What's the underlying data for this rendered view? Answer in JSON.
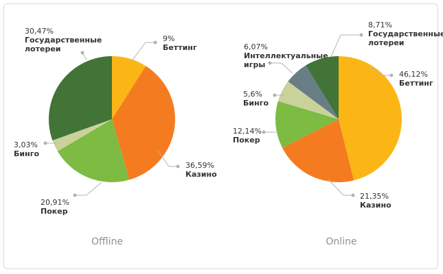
{
  "colors": {
    "betting": "#FBB616",
    "casino": "#F47B20",
    "poker": "#7DBB42",
    "bingo": "#C9D29A",
    "intellectual": "#697D87",
    "lottery": "#417436"
  },
  "chart_data": [
    {
      "type": "pie",
      "title": "Offline",
      "slices": [
        {
          "pct": "9%",
          "value": 9,
          "lines": [
            "Беттинг"
          ],
          "color": "#FBB616"
        },
        {
          "pct": "36,59%",
          "value": 36.59,
          "lines": [
            "Казино"
          ],
          "color": "#F47B20"
        },
        {
          "pct": "20,91%",
          "value": 20.91,
          "lines": [
            "Покер"
          ],
          "color": "#7DBB42"
        },
        {
          "pct": "3,03%",
          "value": 3.03,
          "lines": [
            "Бинго"
          ],
          "color": "#C9D29A"
        },
        {
          "pct": "30,47%",
          "value": 30.47,
          "lines": [
            "Государственные",
            "лотереи"
          ],
          "color": "#417436"
        }
      ]
    },
    {
      "type": "pie",
      "title": "Online",
      "slices": [
        {
          "pct": "46,12%",
          "value": 46.12,
          "lines": [
            "Беттинг"
          ],
          "color": "#FBB616"
        },
        {
          "pct": "21,35%",
          "value": 21.35,
          "lines": [
            "Казино"
          ],
          "color": "#F47B20"
        },
        {
          "pct": "12,14%",
          "value": 12.14,
          "lines": [
            "Покер"
          ],
          "color": "#7DBB42"
        },
        {
          "pct": "5,6%",
          "value": 5.6,
          "lines": [
            "Бинго"
          ],
          "color": "#C9D29A"
        },
        {
          "pct": "6,07%",
          "value": 6.07,
          "lines": [
            "Интеллектуальные",
            "игры"
          ],
          "color": "#697D87"
        },
        {
          "pct": "8,71%",
          "value": 8.71,
          "lines": [
            "Государственные",
            "лотереи"
          ],
          "color": "#417436"
        }
      ]
    }
  ]
}
